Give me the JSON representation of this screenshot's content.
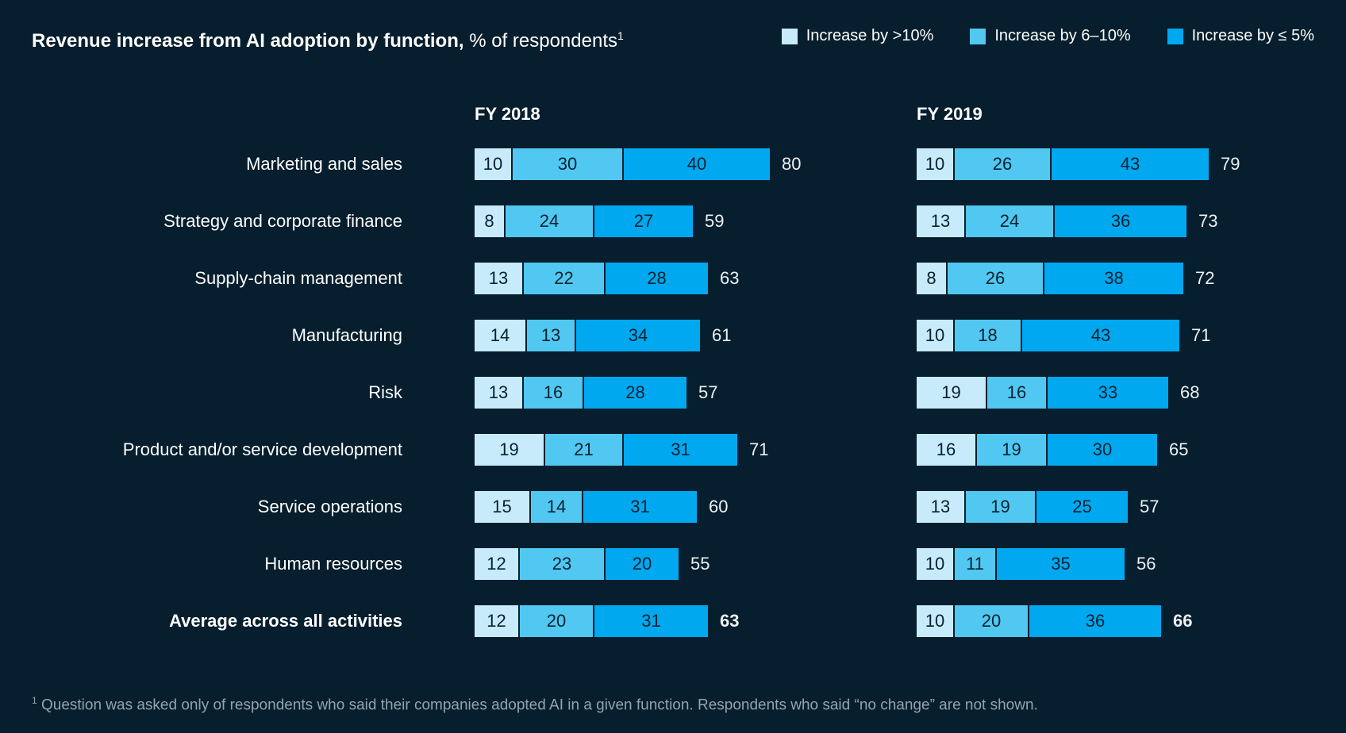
{
  "title": {
    "bold": "Revenue increase from AI adoption by function,",
    "normal": " % of respondents",
    "sup": "1"
  },
  "legend": [
    {
      "label": "Increase by >10%",
      "color": "#C7EBFA"
    },
    {
      "label": "Increase by 6–10%",
      "color": "#51C8F1"
    },
    {
      "label": "Increase by ≤ 5%",
      "color": "#00A8F0"
    }
  ],
  "columns": [
    {
      "label": "FY 2018"
    },
    {
      "label": "FY 2019"
    }
  ],
  "footnote": {
    "marker": "1",
    "text": "Question was asked only of respondents who said their companies adopted AI in a given function. Respondents who said “no change” are not shown."
  },
  "colors": {
    "background": "#061E2D",
    "bar_text": "#07212F",
    "label_text": "#FFFFFF",
    "total_text": "#ECF1F4",
    "footnote_text": "#93A3AE"
  },
  "chart_data": {
    "type": "bar",
    "orientation": "horizontal",
    "stacked": true,
    "title": "Revenue increase from AI adoption by function, % of respondents",
    "legend_position": "top-right",
    "grid": false,
    "categories": [
      {
        "label": "Marketing and sales",
        "bold": false
      },
      {
        "label": "Strategy and corporate finance",
        "bold": false
      },
      {
        "label": "Supply-chain management",
        "bold": false
      },
      {
        "label": "Manufacturing",
        "bold": false
      },
      {
        "label": "Risk",
        "bold": false
      },
      {
        "label": "Product and/or service development",
        "bold": false
      },
      {
        "label": "Service operations",
        "bold": false
      },
      {
        "label": "Human resources",
        "bold": false
      },
      {
        "label": "Average across all activities",
        "bold": true
      }
    ],
    "groups": [
      {
        "label": "FY 2018",
        "series": [
          {
            "name": "Increase by >10%",
            "values": [
              10,
              8,
              13,
              14,
              13,
              19,
              15,
              12,
              12
            ]
          },
          {
            "name": "Increase by 6–10%",
            "values": [
              30,
              24,
              22,
              13,
              16,
              21,
              14,
              23,
              20
            ]
          },
          {
            "name": "Increase by ≤ 5%",
            "values": [
              40,
              27,
              28,
              34,
              28,
              31,
              31,
              20,
              31
            ]
          }
        ],
        "totals": [
          80,
          59,
          63,
          61,
          57,
          71,
          60,
          55,
          63
        ]
      },
      {
        "label": "FY 2019",
        "series": [
          {
            "name": "Increase by >10%",
            "values": [
              10,
              13,
              8,
              10,
              19,
              16,
              13,
              10,
              10
            ]
          },
          {
            "name": "Increase by 6–10%",
            "values": [
              26,
              24,
              26,
              18,
              16,
              19,
              19,
              11,
              20
            ]
          },
          {
            "name": "Increase by ≤ 5%",
            "values": [
              43,
              36,
              38,
              43,
              33,
              30,
              25,
              35,
              36
            ]
          }
        ],
        "totals": [
          79,
          73,
          72,
          71,
          68,
          65,
          57,
          56,
          66
        ]
      }
    ]
  }
}
